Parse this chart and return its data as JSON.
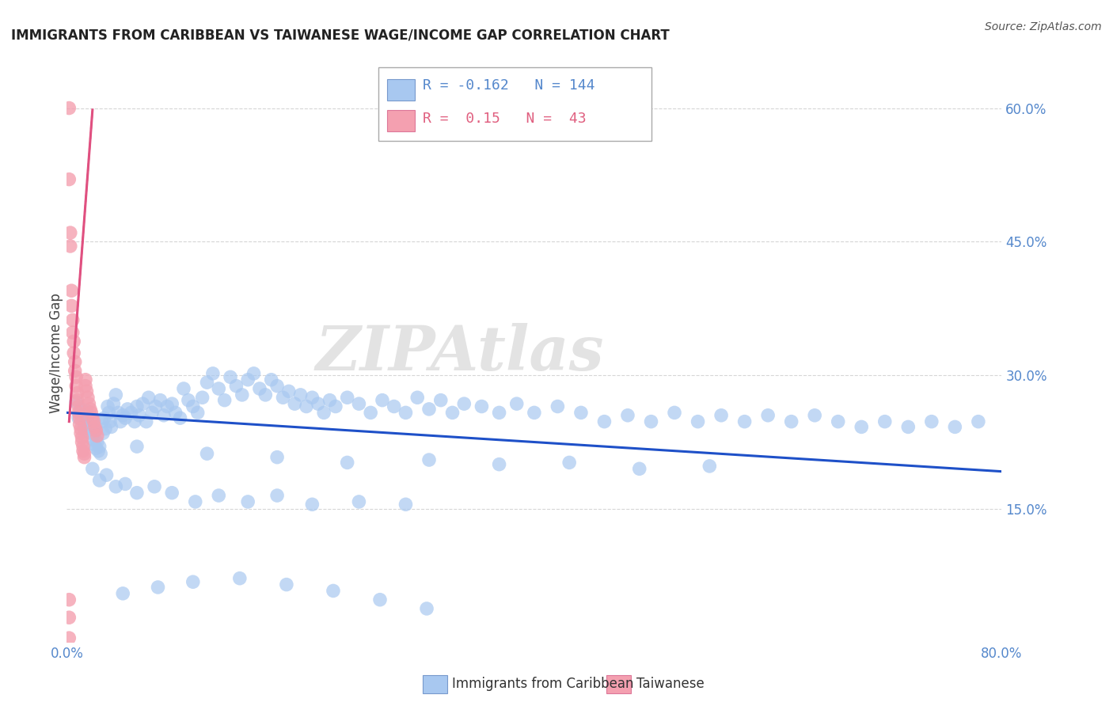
{
  "title": "IMMIGRANTS FROM CARIBBEAN VS TAIWANESE WAGE/INCOME GAP CORRELATION CHART",
  "source": "Source: ZipAtlas.com",
  "ylabel": "Wage/Income Gap",
  "xlim": [
    0.0,
    0.8
  ],
  "ylim": [
    0.0,
    0.65
  ],
  "yticks_right": [
    0.15,
    0.3,
    0.45,
    0.6
  ],
  "ytick_right_labels": [
    "15.0%",
    "30.0%",
    "45.0%",
    "60.0%"
  ],
  "blue_color": "#A8C8F0",
  "pink_color": "#F4A0B0",
  "blue_line_color": "#1E50C8",
  "pink_line_color": "#E05080",
  "blue_R": -0.162,
  "blue_N": 144,
  "pink_R": 0.15,
  "pink_N": 43,
  "legend_label_blue": "Immigrants from Caribbean",
  "legend_label_pink": "Taiwanese",
  "title_color": "#222222",
  "axis_label_color": "#5588CC",
  "watermark": "ZIPAtlas",
  "grid_color": "#CCCCCC",
  "background_color": "#FFFFFF",
  "blue_x": [
    0.008,
    0.01,
    0.012,
    0.013,
    0.014,
    0.015,
    0.016,
    0.017,
    0.018,
    0.019,
    0.02,
    0.021,
    0.022,
    0.023,
    0.024,
    0.025,
    0.026,
    0.027,
    0.028,
    0.029,
    0.03,
    0.031,
    0.032,
    0.033,
    0.035,
    0.036,
    0.037,
    0.038,
    0.04,
    0.042,
    0.044,
    0.046,
    0.048,
    0.05,
    0.052,
    0.055,
    0.058,
    0.06,
    0.062,
    0.065,
    0.068,
    0.07,
    0.073,
    0.076,
    0.08,
    0.083,
    0.086,
    0.09,
    0.093,
    0.097,
    0.1,
    0.104,
    0.108,
    0.112,
    0.116,
    0.12,
    0.125,
    0.13,
    0.135,
    0.14,
    0.145,
    0.15,
    0.155,
    0.16,
    0.165,
    0.17,
    0.175,
    0.18,
    0.185,
    0.19,
    0.195,
    0.2,
    0.205,
    0.21,
    0.215,
    0.22,
    0.225,
    0.23,
    0.24,
    0.25,
    0.26,
    0.27,
    0.28,
    0.29,
    0.3,
    0.31,
    0.32,
    0.33,
    0.34,
    0.355,
    0.37,
    0.385,
    0.4,
    0.42,
    0.44,
    0.46,
    0.48,
    0.5,
    0.52,
    0.54,
    0.56,
    0.58,
    0.6,
    0.62,
    0.64,
    0.66,
    0.68,
    0.7,
    0.72,
    0.74,
    0.76,
    0.78,
    0.022,
    0.028,
    0.034,
    0.042,
    0.05,
    0.06,
    0.075,
    0.09,
    0.11,
    0.13,
    0.155,
    0.18,
    0.21,
    0.25,
    0.29,
    0.06,
    0.12,
    0.18,
    0.24,
    0.31,
    0.37,
    0.43,
    0.49,
    0.55,
    0.048,
    0.078,
    0.108,
    0.148,
    0.188,
    0.228,
    0.268,
    0.308
  ],
  "blue_y": [
    0.27,
    0.252,
    0.262,
    0.255,
    0.248,
    0.24,
    0.255,
    0.26,
    0.248,
    0.242,
    0.235,
    0.24,
    0.228,
    0.235,
    0.222,
    0.218,
    0.225,
    0.215,
    0.22,
    0.212,
    0.248,
    0.235,
    0.252,
    0.24,
    0.265,
    0.258,
    0.248,
    0.242,
    0.268,
    0.278,
    0.258,
    0.248,
    0.255,
    0.252,
    0.262,
    0.258,
    0.248,
    0.265,
    0.255,
    0.268,
    0.248,
    0.275,
    0.258,
    0.265,
    0.272,
    0.255,
    0.265,
    0.268,
    0.258,
    0.252,
    0.285,
    0.272,
    0.265,
    0.258,
    0.275,
    0.292,
    0.302,
    0.285,
    0.272,
    0.298,
    0.288,
    0.278,
    0.295,
    0.302,
    0.285,
    0.278,
    0.295,
    0.288,
    0.275,
    0.282,
    0.268,
    0.278,
    0.265,
    0.275,
    0.268,
    0.258,
    0.272,
    0.265,
    0.275,
    0.268,
    0.258,
    0.272,
    0.265,
    0.258,
    0.275,
    0.262,
    0.272,
    0.258,
    0.268,
    0.265,
    0.258,
    0.268,
    0.258,
    0.265,
    0.258,
    0.248,
    0.255,
    0.248,
    0.258,
    0.248,
    0.255,
    0.248,
    0.255,
    0.248,
    0.255,
    0.248,
    0.242,
    0.248,
    0.242,
    0.248,
    0.242,
    0.248,
    0.195,
    0.182,
    0.188,
    0.175,
    0.178,
    0.168,
    0.175,
    0.168,
    0.158,
    0.165,
    0.158,
    0.165,
    0.155,
    0.158,
    0.155,
    0.22,
    0.212,
    0.208,
    0.202,
    0.205,
    0.2,
    0.202,
    0.195,
    0.198,
    0.055,
    0.062,
    0.068,
    0.072,
    0.065,
    0.058,
    0.048,
    0.038
  ],
  "pink_x": [
    0.002,
    0.002,
    0.003,
    0.003,
    0.004,
    0.004,
    0.005,
    0.005,
    0.006,
    0.006,
    0.007,
    0.007,
    0.008,
    0.008,
    0.009,
    0.009,
    0.01,
    0.01,
    0.011,
    0.011,
    0.012,
    0.012,
    0.013,
    0.013,
    0.014,
    0.014,
    0.015,
    0.015,
    0.016,
    0.016,
    0.017,
    0.018,
    0.019,
    0.02,
    0.021,
    0.022,
    0.023,
    0.024,
    0.025,
    0.026,
    0.002,
    0.002,
    0.002
  ],
  "pink_y": [
    0.6,
    0.52,
    0.46,
    0.445,
    0.395,
    0.378,
    0.362,
    0.348,
    0.338,
    0.325,
    0.315,
    0.305,
    0.298,
    0.288,
    0.28,
    0.272,
    0.265,
    0.258,
    0.252,
    0.245,
    0.24,
    0.235,
    0.23,
    0.225,
    0.22,
    0.215,
    0.212,
    0.208,
    0.295,
    0.288,
    0.282,
    0.275,
    0.268,
    0.262,
    0.258,
    0.252,
    0.248,
    0.242,
    0.238,
    0.232,
    0.048,
    0.028,
    0.005
  ],
  "blue_line_x": [
    0.0,
    0.8
  ],
  "blue_line_y": [
    0.258,
    0.192
  ],
  "pink_line_x": [
    0.002,
    0.022
  ],
  "pink_line_y": [
    0.248,
    0.598
  ]
}
